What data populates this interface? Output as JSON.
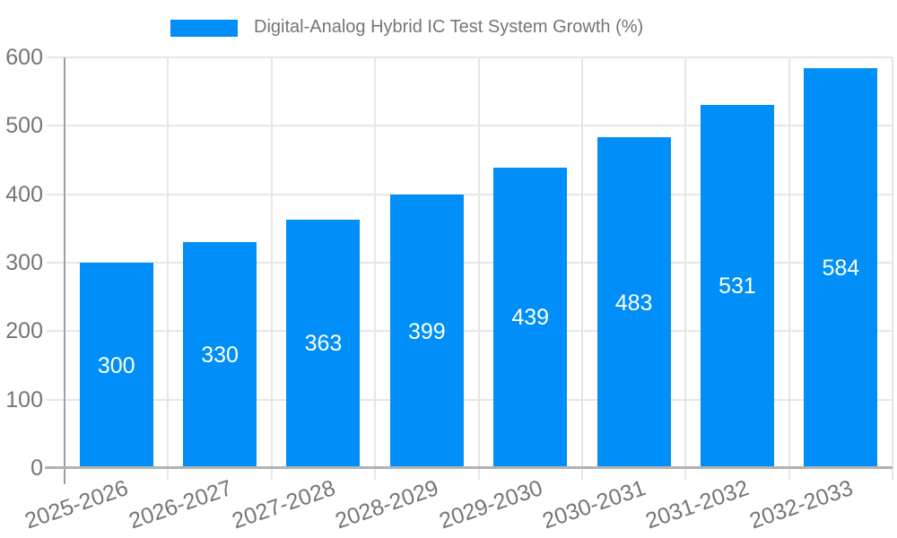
{
  "legend": {
    "label": "Digital-Analog Hybrid IC Test System Growth (%)",
    "swatch_color": "#008ff8"
  },
  "colors": {
    "bar": "#008ff8",
    "axis_text": "#757575",
    "value_label_text": "#ffffff",
    "gridline": "#e6e6e6",
    "y_axis_line": "#9e9e9e",
    "x_axis_line": "#b2b2b2",
    "background": "#ffffff"
  },
  "chart_data": {
    "type": "bar",
    "title": "",
    "categories": [
      "2025-2026",
      "2026-2027",
      "2027-2028",
      "2028-2029",
      "2029-2030",
      "2030-2031",
      "2031-2032",
      "2032-2033"
    ],
    "series": [
      {
        "name": "Digital-Analog Hybrid IC Test System Growth (%)",
        "values": [
          300,
          330,
          363,
          399,
          439,
          483,
          531,
          584
        ]
      }
    ],
    "xlabel": "",
    "ylabel": "",
    "ylim": [
      0,
      600
    ],
    "yticks": [
      0,
      100,
      200,
      300,
      400,
      500,
      600
    ],
    "grid": true,
    "legend_position": "top",
    "value_labels": "inside-center",
    "x_tick_rotation_deg": -19
  }
}
